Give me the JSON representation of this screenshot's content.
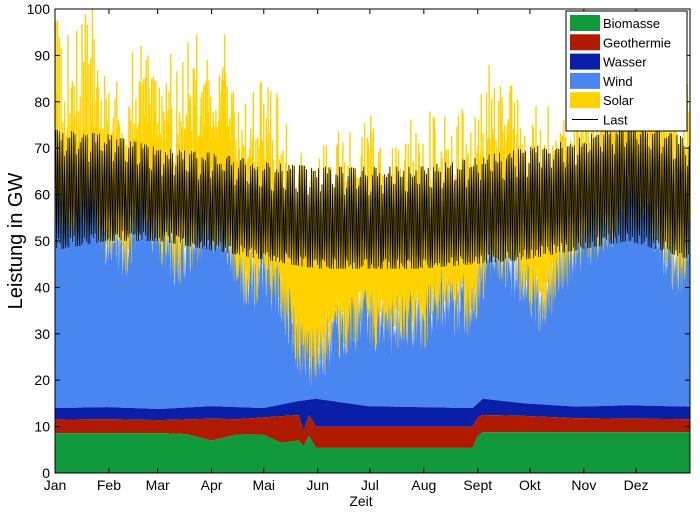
{
  "chart_data": {
    "type": "area",
    "title": "",
    "xlabel": "Zeit",
    "ylabel": "Leistung in GW",
    "x_ticks": [
      "Jan",
      "Feb",
      "Mar",
      "Apr",
      "Mai",
      "Jun",
      "Jul",
      "Aug",
      "Sept",
      "Okt",
      "Nov",
      "Dez"
    ],
    "y_ticks": [
      "0",
      "10",
      "20",
      "30",
      "40",
      "50",
      "60",
      "70",
      "80",
      "90",
      "100"
    ],
    "ylim": [
      0,
      100
    ],
    "xlim_days": [
      0,
      365
    ],
    "grid": false,
    "legend_position": "top-right",
    "series": [
      {
        "name": "Biomasse",
        "color": "#119a3c",
        "stack_top": [
          [
            0,
            8.6
          ],
          [
            30,
            8.6
          ],
          [
            60,
            8.6
          ],
          [
            75,
            8.4
          ],
          [
            90,
            7.0
          ],
          [
            105,
            8.3
          ],
          [
            120,
            8.2
          ],
          [
            130,
            6.5
          ],
          [
            140,
            7.0
          ],
          [
            143,
            5.8
          ],
          [
            146,
            8.0
          ],
          [
            150,
            5.4
          ],
          [
            180,
            5.4
          ],
          [
            210,
            5.4
          ],
          [
            240,
            5.4
          ],
          [
            243,
            8.0
          ],
          [
            246,
            8.8
          ],
          [
            260,
            8.8
          ],
          [
            290,
            8.8
          ],
          [
            320,
            8.8
          ],
          [
            365,
            8.8
          ]
        ]
      },
      {
        "name": "Geothermie",
        "color": "#b01a00",
        "stack_top": [
          [
            0,
            11.5
          ],
          [
            30,
            11.6
          ],
          [
            60,
            11.4
          ],
          [
            90,
            11.7
          ],
          [
            105,
            11.6
          ],
          [
            140,
            12.5
          ],
          [
            143,
            9.0
          ],
          [
            146,
            12.5
          ],
          [
            150,
            10.0
          ],
          [
            200,
            10.0
          ],
          [
            240,
            10.0
          ],
          [
            243,
            12.0
          ],
          [
            246,
            12.5
          ],
          [
            270,
            12.3
          ],
          [
            300,
            11.8
          ],
          [
            330,
            11.7
          ],
          [
            365,
            11.6
          ]
        ]
      },
      {
        "name": "Wasser",
        "color": "#0a1fa8",
        "stack_top": [
          [
            0,
            14.0
          ],
          [
            30,
            14.2
          ],
          [
            60,
            13.8
          ],
          [
            90,
            14.4
          ],
          [
            120,
            14.0
          ],
          [
            140,
            15.5
          ],
          [
            150,
            16.0
          ],
          [
            180,
            14.4
          ],
          [
            210,
            14.2
          ],
          [
            240,
            14.0
          ],
          [
            246,
            16.0
          ],
          [
            270,
            15.0
          ],
          [
            300,
            14.3
          ],
          [
            330,
            14.6
          ],
          [
            365,
            14.3
          ]
        ]
      },
      {
        "name": "Wind",
        "color": "#4a86f0",
        "stack_top_base": [
          [
            0,
            60
          ],
          [
            10,
            56
          ],
          [
            20,
            62
          ],
          [
            30,
            50
          ],
          [
            40,
            48
          ],
          [
            50,
            58
          ],
          [
            60,
            52
          ],
          [
            70,
            46
          ],
          [
            80,
            50
          ],
          [
            90,
            55
          ],
          [
            100,
            50
          ],
          [
            110,
            40
          ],
          [
            120,
            44
          ],
          [
            130,
            38
          ],
          [
            140,
            28
          ],
          [
            150,
            24
          ],
          [
            160,
            30
          ],
          [
            170,
            32
          ],
          [
            180,
            35
          ],
          [
            190,
            30
          ],
          [
            200,
            34
          ],
          [
            210,
            32
          ],
          [
            220,
            38
          ],
          [
            230,
            36
          ],
          [
            240,
            36
          ],
          [
            250,
            48
          ],
          [
            260,
            46
          ],
          [
            270,
            40
          ],
          [
            280,
            36
          ],
          [
            290,
            44
          ],
          [
            300,
            48
          ],
          [
            310,
            52
          ],
          [
            320,
            55
          ],
          [
            330,
            58
          ],
          [
            340,
            60
          ],
          [
            350,
            48
          ],
          [
            360,
            44
          ],
          [
            365,
            50
          ]
        ]
      },
      {
        "name": "Solar",
        "color": "#ffd300",
        "peak_envelope": [
          [
            0,
            76
          ],
          [
            20,
            80
          ],
          [
            40,
            74
          ],
          [
            60,
            84
          ],
          [
            80,
            86
          ],
          [
            100,
            88
          ],
          [
            120,
            84
          ],
          [
            140,
            86
          ],
          [
            160,
            88
          ],
          [
            180,
            86
          ],
          [
            200,
            84
          ],
          [
            220,
            90
          ],
          [
            240,
            86
          ],
          [
            260,
            84
          ],
          [
            280,
            80
          ],
          [
            300,
            76
          ],
          [
            320,
            74
          ],
          [
            340,
            74
          ],
          [
            365,
            70
          ]
        ]
      },
      {
        "name": "Last",
        "color": "#000000",
        "range": [
          [
            0,
            48,
            74
          ],
          [
            30,
            50,
            73
          ],
          [
            60,
            50,
            70
          ],
          [
            90,
            48,
            69
          ],
          [
            120,
            46,
            67
          ],
          [
            150,
            44,
            66
          ],
          [
            180,
            44,
            66
          ],
          [
            210,
            44,
            66
          ],
          [
            240,
            45,
            68
          ],
          [
            270,
            46,
            70
          ],
          [
            300,
            48,
            72
          ],
          [
            330,
            50,
            76
          ],
          [
            365,
            46,
            72
          ]
        ]
      }
    ]
  },
  "legend": [
    {
      "label": "Biomasse",
      "color": "#119a3c",
      "kind": "patch"
    },
    {
      "label": "Geothermie",
      "color": "#b01a00",
      "kind": "patch"
    },
    {
      "label": "Wasser",
      "color": "#0a1fa8",
      "kind": "patch"
    },
    {
      "label": "Wind",
      "color": "#4a86f0",
      "kind": "patch"
    },
    {
      "label": "Solar",
      "color": "#ffd300",
      "kind": "patch"
    },
    {
      "label": "Last",
      "color": "#000000",
      "kind": "line"
    }
  ]
}
